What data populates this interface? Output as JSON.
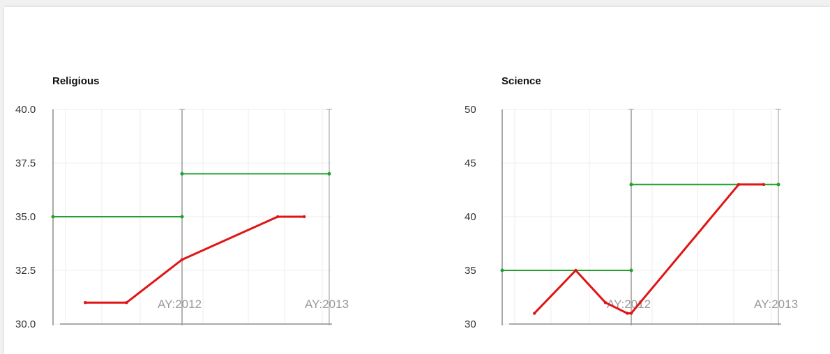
{
  "chart_data": [
    {
      "type": "line",
      "title": "Religious",
      "ylim": [
        30.0,
        40.0
      ],
      "yticks": [
        "30.0",
        "32.5",
        "35.0",
        "37.5",
        "40.0"
      ],
      "x_labels": [
        "AY:2012",
        "AY:2013"
      ],
      "series": [
        {
          "color": "#22a02a",
          "segments": [
            [
              [
                0.0,
                35.0
              ],
              [
                1.0,
                35.0
              ]
            ],
            [
              [
                1.0,
                37.0
              ],
              [
                2.0,
                37.0
              ]
            ]
          ]
        },
        {
          "color": "#e01414",
          "points": [
            [
              0.25,
              31.0
            ],
            [
              0.57,
              31.0
            ],
            [
              1.0,
              33.0
            ],
            [
              1.65,
              35.0
            ],
            [
              1.83,
              35.0
            ]
          ]
        }
      ]
    },
    {
      "type": "line",
      "title": "Science",
      "ylim": [
        30,
        50
      ],
      "yticks": [
        "30",
        "35",
        "40",
        "45",
        "50"
      ],
      "x_labels": [
        "AY:2012",
        "AY:2013"
      ],
      "series": [
        {
          "color": "#22a02a",
          "segments": [
            [
              [
                0.0,
                35
              ],
              [
                1.0,
                35
              ]
            ],
            [
              [
                1.0,
                43
              ],
              [
                2.0,
                43
              ]
            ]
          ]
        },
        {
          "color": "#e01414",
          "points": [
            [
              0.25,
              31
            ],
            [
              0.57,
              35
            ],
            [
              0.8,
              32
            ],
            [
              0.97,
              31
            ],
            [
              1.0,
              31
            ],
            [
              1.73,
              43
            ],
            [
              1.9,
              43
            ]
          ]
        }
      ]
    }
  ]
}
